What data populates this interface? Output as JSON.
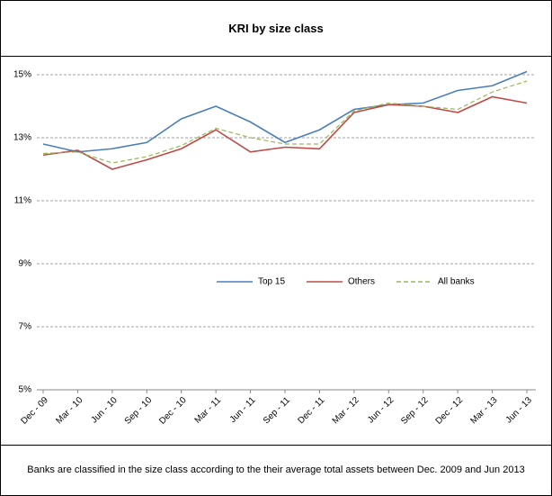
{
  "chart_data": {
    "type": "line",
    "title": "KRI by size class",
    "categories": [
      "Dec - 09",
      "Mar - 10",
      "Jun - 10",
      "Sep - 10",
      "Dec - 10",
      "Mar - 11",
      "Jun - 11",
      "Sep - 11",
      "Dec - 11",
      "Mar - 12",
      "Jun - 12",
      "Sep - 12",
      "Dec - 12",
      "Mar - 13",
      "Jun - 13"
    ],
    "series": [
      {
        "name": "Top 15",
        "color": "#4a7ebb",
        "values": [
          12.8,
          12.55,
          12.65,
          12.85,
          13.6,
          14.0,
          13.5,
          12.85,
          13.25,
          13.9,
          14.05,
          14.1,
          14.5,
          14.65,
          15.1
        ]
      },
      {
        "name": "Others",
        "color": "#be4b48",
        "values": [
          12.45,
          12.6,
          12.0,
          12.3,
          12.65,
          13.25,
          12.55,
          12.7,
          12.65,
          13.8,
          14.05,
          14.0,
          13.8,
          14.3,
          14.1
        ]
      },
      {
        "name": "All banks",
        "color": "#98b954",
        "dashed": true,
        "values": [
          12.5,
          12.55,
          12.2,
          12.4,
          12.75,
          13.3,
          13.0,
          12.8,
          12.8,
          13.85,
          14.1,
          14.0,
          13.9,
          14.45,
          14.8
        ]
      }
    ],
    "ylim": [
      5,
      15
    ],
    "yticks": [
      {
        "value": 5,
        "label": "5%"
      },
      {
        "value": 7,
        "label": "7%"
      },
      {
        "value": 9,
        "label": "9%"
      },
      {
        "value": 11,
        "label": "11%"
      },
      {
        "value": 13,
        "label": "13%"
      },
      {
        "value": 15,
        "label": "15%"
      }
    ],
    "grid": true,
    "legend": "center",
    "footnote": "Banks are classified in the size class according to the their average total assets between Dec. 2009 and Jun 2013"
  }
}
